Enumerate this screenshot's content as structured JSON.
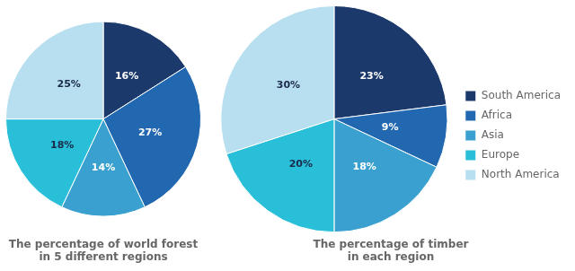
{
  "chart_data": [
    {
      "type": "pie",
      "title": "The percentage of world forest\nin 5 different regions",
      "categories": [
        "South America",
        "Africa",
        "Asia",
        "Europe",
        "North America"
      ],
      "values": [
        16,
        27,
        14,
        18,
        25
      ],
      "value_labels": [
        "16%",
        "27%",
        "14%",
        "18%",
        "25%"
      ],
      "colors": [
        "#1b3a6b",
        "#2268b0",
        "#3aa0d0",
        "#29bfd8",
        "#b8dff0"
      ],
      "data_labels": true
    },
    {
      "type": "pie",
      "title": "The percentage of timber\nin each region",
      "categories": [
        "South America",
        "Africa",
        "Asia",
        "Europe",
        "North America"
      ],
      "values": [
        23,
        9,
        18,
        20,
        30
      ],
      "value_labels": [
        "23%",
        "9%",
        "18%",
        "20%",
        "30%"
      ],
      "colors": [
        "#1b3a6b",
        "#2268b0",
        "#3aa0d0",
        "#29bfd8",
        "#b8dff0"
      ],
      "data_labels": true,
      "legend": "right"
    }
  ]
}
